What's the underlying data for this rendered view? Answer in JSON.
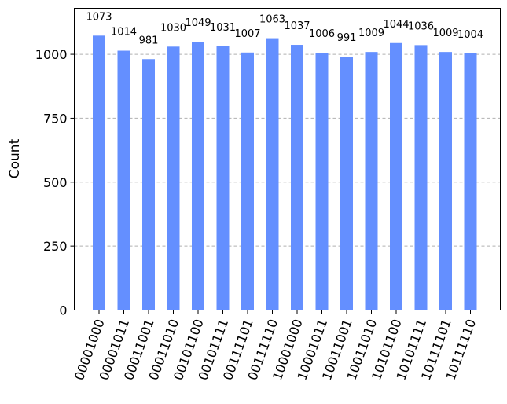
{
  "chart_data": {
    "type": "bar",
    "title": "",
    "xlabel": "",
    "ylabel": "Count",
    "ylim": [
      0,
      1180
    ],
    "yticks": [
      0,
      250,
      500,
      750,
      1000
    ],
    "grid": "y-dashed",
    "bar_color": "#648fff",
    "categories": [
      "00001000",
      "00001011",
      "00011001",
      "00011010",
      "00101100",
      "00101111",
      "00111101",
      "00111110",
      "10001000",
      "10001011",
      "10011001",
      "10011010",
      "10101100",
      "10101111",
      "10111101",
      "10111110"
    ],
    "values": [
      1073,
      1014,
      981,
      1030,
      1049,
      1031,
      1007,
      1063,
      1037,
      1006,
      991,
      1009,
      1044,
      1036,
      1009,
      1004
    ]
  }
}
